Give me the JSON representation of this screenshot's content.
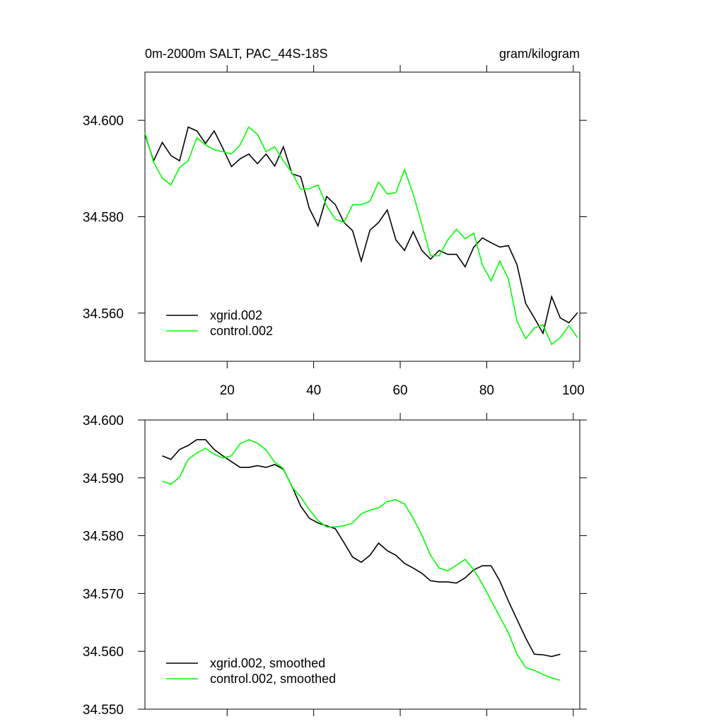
{
  "chart_data": [
    {
      "type": "line",
      "title": "0m-2000m SALT, PAC_44S-18S",
      "units": "gram/kilogram",
      "x": [
        1,
        3,
        5,
        7,
        9,
        11,
        13,
        15,
        17,
        19,
        21,
        23,
        25,
        27,
        29,
        31,
        33,
        35,
        37,
        39,
        41,
        43,
        45,
        47,
        49,
        51,
        53,
        55,
        57,
        59,
        61,
        63,
        65,
        67,
        69,
        71,
        73,
        75,
        77,
        79,
        81,
        83,
        85,
        87,
        89,
        91,
        93,
        95,
        97,
        99,
        101
      ],
      "series": [
        {
          "name": "xgrid.002",
          "color": "#000000",
          "values": [
            34.5971,
            34.5916,
            34.5954,
            34.5927,
            34.5916,
            34.5986,
            34.5978,
            34.5952,
            34.5978,
            34.5942,
            34.5904,
            34.592,
            34.593,
            34.591,
            34.593,
            34.5905,
            34.5945,
            34.5889,
            34.5883,
            34.5817,
            34.5781,
            34.5842,
            34.5825,
            34.5788,
            34.5771,
            34.5708,
            34.5772,
            34.5788,
            34.5814,
            34.5752,
            34.573,
            34.5769,
            34.573,
            34.5712,
            34.573,
            34.5722,
            34.5722,
            34.5696,
            34.5737,
            34.5756,
            34.5746,
            34.5737,
            34.574,
            34.57,
            34.562,
            34.559,
            34.5558,
            34.5634,
            34.559,
            34.558,
            34.5601
          ]
        },
        {
          "name": "control.002",
          "color": "#00ff00",
          "values": [
            34.5974,
            34.5913,
            34.588,
            34.5866,
            34.5902,
            34.5916,
            34.5964,
            34.5949,
            34.5939,
            34.5935,
            34.593,
            34.5949,
            34.5986,
            34.5971,
            34.5935,
            34.5945,
            34.5916,
            34.5891,
            34.5857,
            34.5858,
            34.5866,
            34.5822,
            34.5795,
            34.5788,
            34.5825,
            34.5825,
            34.5832,
            34.5872,
            34.5847,
            34.585,
            34.5898,
            34.5847,
            34.5784,
            34.5719,
            34.5719,
            34.5752,
            34.5774,
            34.5754,
            34.5766,
            34.57,
            34.5667,
            34.5708,
            34.5671,
            34.5583,
            34.5547,
            34.5569,
            34.5576,
            34.5535,
            34.5549,
            34.5574,
            34.5549
          ]
        }
      ],
      "xlim": [
        1,
        101.5
      ],
      "xticks": [
        20,
        40,
        60,
        80,
        100
      ],
      "xtick_labels": true,
      "ylim": [
        34.55,
        34.61
      ],
      "yticks": [
        {
          "value": 34.6,
          "label": "34.600"
        },
        {
          "value": 34.58,
          "label": "34.580"
        },
        {
          "value": 34.56,
          "label": "34.560"
        }
      ],
      "legend": "lower left"
    },
    {
      "type": "line",
      "x": [
        5,
        7,
        9,
        11,
        13,
        15,
        17,
        19,
        21,
        23,
        25,
        27,
        29,
        31,
        33,
        35,
        37,
        39,
        41,
        43,
        45,
        47,
        49,
        51,
        53,
        55,
        57,
        59,
        61,
        63,
        65,
        67,
        69,
        71,
        73,
        75,
        77,
        79,
        81,
        83,
        85,
        87,
        89,
        91,
        93,
        95,
        97
      ],
      "series": [
        {
          "name": "xgrid.002, smoothed",
          "color": "#000000",
          "values": [
            34.5938,
            34.5932,
            34.5949,
            34.5956,
            34.5966,
            34.5966,
            34.5949,
            34.5938,
            34.5928,
            34.5918,
            34.5918,
            34.5921,
            34.5918,
            34.5923,
            34.5915,
            34.5885,
            34.5851,
            34.583,
            34.5822,
            34.5817,
            34.5812,
            34.5788,
            34.5763,
            34.5754,
            34.5766,
            34.5787,
            34.5774,
            34.5766,
            34.5752,
            34.5744,
            34.5735,
            34.5722,
            34.572,
            34.572,
            34.5718,
            34.5727,
            34.5741,
            34.5748,
            34.5748,
            34.5722,
            34.5687,
            34.5655,
            34.5623,
            34.5595,
            34.5594,
            34.5591,
            34.5595
          ]
        },
        {
          "name": "control.002, smoothed",
          "color": "#00ff00",
          "values": [
            34.5894,
            34.5889,
            34.5901,
            34.5932,
            34.5943,
            34.5951,
            34.5941,
            34.5934,
            34.5938,
            34.5959,
            34.5966,
            34.596,
            34.5948,
            34.5927,
            34.5916,
            34.5884,
            34.5867,
            34.5845,
            34.5826,
            34.5815,
            34.5815,
            34.5817,
            34.5822,
            34.5838,
            34.5844,
            34.5848,
            34.5859,
            34.5862,
            34.5855,
            34.583,
            34.5801,
            34.5766,
            34.5744,
            34.5739,
            34.5749,
            34.5759,
            34.5741,
            34.5716,
            34.5688,
            34.566,
            34.5632,
            34.5595,
            34.5572,
            34.5567,
            34.556,
            34.5554,
            34.555
          ]
        }
      ],
      "xlim": [
        1,
        101.5
      ],
      "xticks": [
        20,
        40,
        60,
        80,
        100
      ],
      "xtick_labels": false,
      "ylim": [
        34.55,
        34.6
      ],
      "yticks": [
        {
          "value": 34.6,
          "label": "34.600"
        },
        {
          "value": 34.59,
          "label": "34.590"
        },
        {
          "value": 34.58,
          "label": "34.580"
        },
        {
          "value": 34.57,
          "label": "34.570"
        },
        {
          "value": 34.56,
          "label": "34.560"
        },
        {
          "value": 34.55,
          "label": "34.550"
        }
      ],
      "legend": "lower left"
    }
  ]
}
